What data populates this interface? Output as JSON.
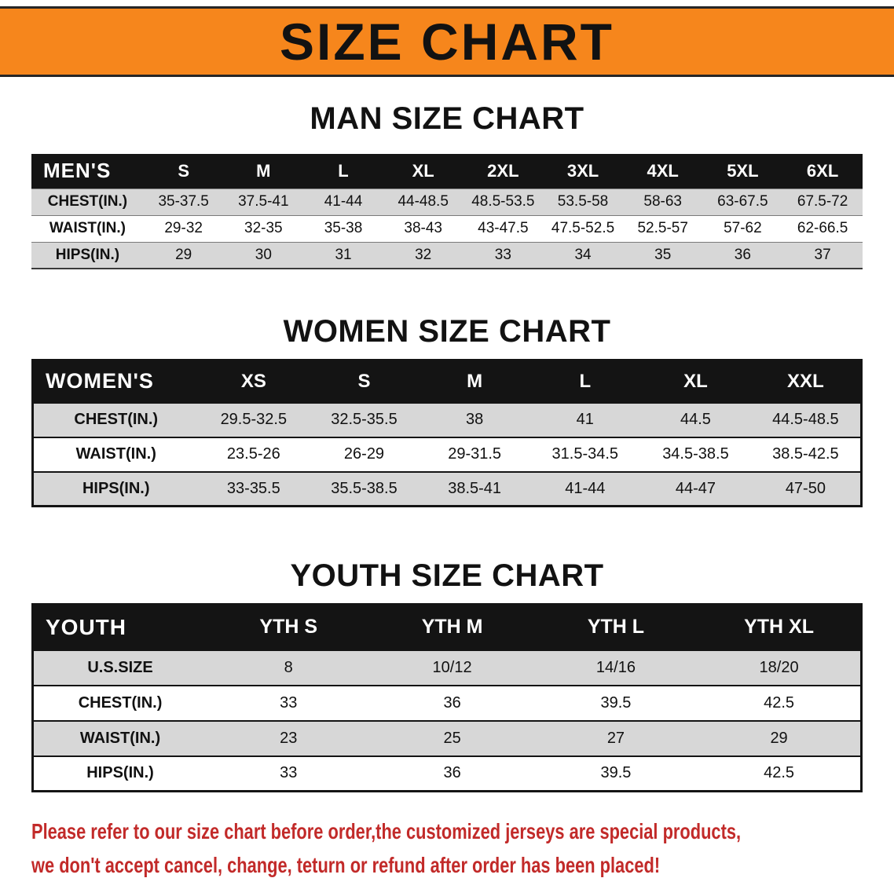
{
  "banner": {
    "title": "SIZE CHART"
  },
  "colors": {
    "banner_orange": "#F6861C",
    "header_black": "#141414",
    "row_gray": "#D7D7D7",
    "disclaimer_red": "#C22A29"
  },
  "sections": [
    {
      "key": "men",
      "heading": "MAN SIZE CHART",
      "table": {
        "header": [
          "MEN'S",
          "S",
          "M",
          "L",
          "XL",
          "2XL",
          "3XL",
          "4XL",
          "5XL",
          "6XL"
        ],
        "rows": [
          [
            "CHEST(IN.)",
            "35-37.5",
            "37.5-41",
            "41-44",
            "44-48.5",
            "48.5-53.5",
            "53.5-58",
            "58-63",
            "63-67.5",
            "67.5-72"
          ],
          [
            "WAIST(IN.)",
            "29-32",
            "32-35",
            "35-38",
            "38-43",
            "43-47.5",
            "47.5-52.5",
            "52.5-57",
            "57-62",
            "62-66.5"
          ],
          [
            "HIPS(IN.)",
            "29",
            "30",
            "31",
            "32",
            "33",
            "34",
            "35",
            "36",
            "37"
          ]
        ]
      }
    },
    {
      "key": "women",
      "heading": "WOMEN SIZE CHART",
      "table": {
        "header": [
          "WOMEN'S",
          "XS",
          "S",
          "M",
          "L",
          "XL",
          "XXL"
        ],
        "rows": [
          [
            "CHEST(IN.)",
            "29.5-32.5",
            "32.5-35.5",
            "38",
            "41",
            "44.5",
            "44.5-48.5"
          ],
          [
            "WAIST(IN.)",
            "23.5-26",
            "26-29",
            "29-31.5",
            "31.5-34.5",
            "34.5-38.5",
            "38.5-42.5"
          ],
          [
            "HIPS(IN.)",
            "33-35.5",
            "35.5-38.5",
            "38.5-41",
            "41-44",
            "44-47",
            "47-50"
          ]
        ]
      }
    },
    {
      "key": "youth",
      "heading": "YOUTH SIZE CHART",
      "table": {
        "header": [
          "YOUTH",
          "YTH S",
          "YTH M",
          "YTH L",
          "YTH XL"
        ],
        "rows": [
          [
            "U.S.SIZE",
            "8",
            "10/12",
            "14/16",
            "18/20"
          ],
          [
            "CHEST(IN.)",
            "33",
            "36",
            "39.5",
            "42.5"
          ],
          [
            "WAIST(IN.)",
            "23",
            "25",
            "27",
            "29"
          ],
          [
            "HIPS(IN.)",
            "33",
            "36",
            "39.5",
            "42.5"
          ]
        ]
      }
    }
  ],
  "disclaimer": {
    "line1": "Please refer to our size chart before order,the customized jerseys are special products,",
    "line2": "we don't accept cancel, change, teturn or refund after order has been placed!"
  }
}
